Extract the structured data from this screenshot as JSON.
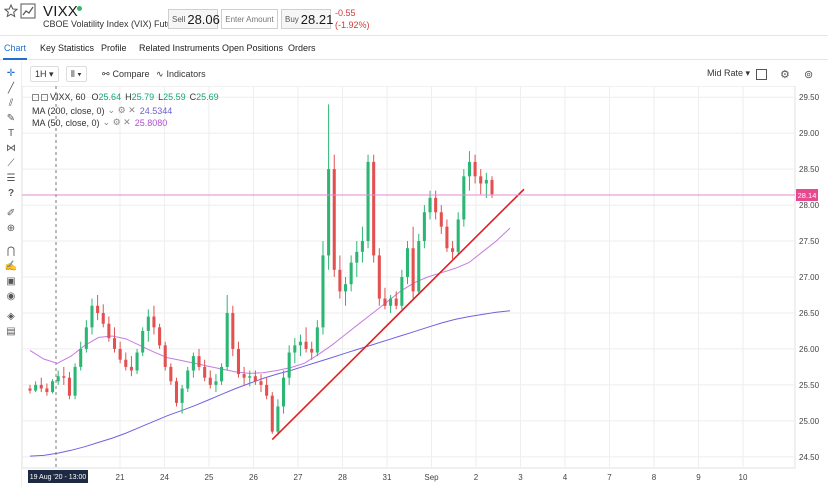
{
  "header": {
    "symbol": "VIXX",
    "instrument_name": "CBOE Volatility Index (VIX) Futures",
    "sell_label": "Sell",
    "sell_price": "28.06",
    "amount_placeholder": "Enter Amount",
    "buy_label": "Buy",
    "buy_price": "28.21",
    "change": "-0.55",
    "change_pct": "(-1.92%)",
    "colors": {
      "live": "#3cb371",
      "negative": "#d23a3a",
      "accent": "#1f6fd1"
    }
  },
  "tabs": [
    {
      "label": "Chart",
      "active": true
    },
    {
      "label": "Key Statistics"
    },
    {
      "label": "Profile"
    },
    {
      "label": "Related Instruments"
    },
    {
      "label": "Open Positions"
    },
    {
      "label": "Orders"
    }
  ],
  "chart_toolbar": {
    "interval": "1H",
    "compare_label": "Compare",
    "indicators_label": "Indicators",
    "price_mode": "Mid Rate"
  },
  "legend": {
    "title": "VIXX, 60",
    "o_label": "O",
    "o": "25.64",
    "h_label": "H",
    "h": "25.79",
    "l_label": "L",
    "l": "25.59",
    "c_label": "C",
    "c": "25.69",
    "ma200_label": "MA (200, close, 0)",
    "ma200_value": "24.5344",
    "ma50_label": "MA (50, close, 0)",
    "ma50_value": "25.8080"
  },
  "toolbar_icons": [
    "crosshair-icon",
    "line-icon",
    "multi-line-icon",
    "brush-icon",
    "text-icon",
    "pattern-icon",
    "measure-icon",
    "fib-icon",
    "help-icon",
    "pencil-icon",
    "zoom-icon",
    "magnet-icon",
    "lock-draw-icon",
    "lock-icon",
    "eye-icon",
    "layers-icon",
    "trash-icon"
  ],
  "chart_data": {
    "type": "candlestick",
    "y_ticks": [
      "29.50",
      "29.00",
      "28.50",
      "28.00",
      "27.50",
      "27.00",
      "26.50",
      "26.00",
      "25.50",
      "25.00",
      "24.50"
    ],
    "ylim": [
      24.4,
      29.6
    ],
    "x_ticks": [
      "21",
      "24",
      "25",
      "26",
      "27",
      "28",
      "31",
      "Sep",
      "2",
      "3",
      "4",
      "7",
      "8",
      "9",
      "10"
    ],
    "crosshair_x_label": "19 Aug '20 - 13:00",
    "current_price_label": "28.14",
    "current_price": 28.14,
    "colors": {
      "up": "#2bb673",
      "down": "#e25050",
      "ma50": "#c77be0",
      "ma200": "#6f62e0",
      "trendline": "#e02020",
      "price_line": "#e58ad6"
    },
    "trendline": {
      "from": [
        "Aug 26",
        24.74
      ],
      "to": [
        "Sep 2",
        28.22
      ]
    },
    "ma50": [
      25.98,
      25.86,
      25.8,
      25.9,
      26.05,
      26.16,
      26.18,
      26.14,
      26.05,
      25.96,
      25.88,
      25.84,
      25.8,
      25.76,
      25.72,
      25.68,
      25.66,
      25.67,
      25.7,
      25.74,
      25.8,
      25.92,
      26.05,
      26.2,
      26.35,
      26.5,
      26.65,
      26.8,
      26.92,
      27.0,
      27.06,
      27.12,
      27.2,
      27.35,
      27.5,
      27.68
    ],
    "ma200": [
      24.51,
      24.52,
      24.55,
      24.59,
      24.64,
      24.7,
      24.76,
      24.83,
      24.91,
      24.99,
      25.07,
      25.14,
      25.21,
      25.29,
      25.37,
      25.45,
      25.52,
      25.59,
      25.65,
      25.7,
      25.76,
      25.82,
      25.88,
      25.94,
      26.0,
      26.06,
      26.12,
      26.18,
      26.24,
      26.3,
      26.36,
      26.41,
      26.45,
      26.48,
      26.51,
      26.53
    ],
    "candles": [
      [
        25.45,
        25.5,
        25.38,
        25.42
      ],
      [
        25.42,
        25.55,
        25.4,
        25.5
      ],
      [
        25.5,
        25.6,
        25.4,
        25.45
      ],
      [
        25.45,
        25.52,
        25.35,
        25.4
      ],
      [
        25.4,
        25.58,
        25.38,
        25.55
      ],
      [
        25.55,
        25.7,
        25.5,
        25.62
      ],
      [
        25.62,
        25.75,
        25.5,
        25.6
      ],
      [
        25.6,
        25.68,
        25.3,
        25.35
      ],
      [
        25.35,
        25.8,
        25.3,
        25.75
      ],
      [
        25.75,
        26.1,
        25.7,
        26.0
      ],
      [
        26.0,
        26.4,
        25.95,
        26.3
      ],
      [
        26.3,
        26.7,
        26.2,
        26.6
      ],
      [
        26.6,
        26.75,
        26.4,
        26.5
      ],
      [
        26.5,
        26.62,
        26.3,
        26.35
      ],
      [
        26.35,
        26.45,
        26.1,
        26.15
      ],
      [
        26.15,
        26.3,
        25.95,
        26.0
      ],
      [
        26.0,
        26.1,
        25.8,
        25.85
      ],
      [
        25.85,
        25.95,
        25.7,
        25.75
      ],
      [
        25.75,
        25.9,
        25.62,
        25.7
      ],
      [
        25.7,
        26.0,
        25.65,
        25.95
      ],
      [
        25.95,
        26.3,
        25.9,
        26.25
      ],
      [
        26.25,
        26.55,
        26.1,
        26.45
      ],
      [
        26.45,
        26.6,
        26.2,
        26.3
      ],
      [
        26.3,
        26.35,
        26.0,
        26.05
      ],
      [
        26.05,
        26.1,
        25.7,
        25.75
      ],
      [
        25.75,
        25.8,
        25.5,
        25.55
      ],
      [
        25.55,
        25.6,
        25.2,
        25.25
      ],
      [
        25.25,
        25.5,
        25.1,
        25.45
      ],
      [
        25.45,
        25.75,
        25.4,
        25.7
      ],
      [
        25.7,
        25.95,
        25.6,
        25.9
      ],
      [
        25.9,
        26.0,
        25.7,
        25.75
      ],
      [
        25.75,
        25.85,
        25.55,
        25.6
      ],
      [
        25.6,
        25.7,
        25.45,
        25.5
      ],
      [
        25.5,
        25.65,
        25.4,
        25.55
      ],
      [
        25.55,
        25.8,
        25.5,
        25.75
      ],
      [
        25.75,
        26.75,
        25.7,
        26.5
      ],
      [
        26.5,
        26.6,
        25.9,
        26.0
      ],
      [
        26.0,
        26.1,
        25.6,
        25.65
      ],
      [
        25.65,
        25.75,
        25.5,
        25.6
      ],
      [
        25.6,
        25.7,
        25.48,
        25.62
      ],
      [
        25.62,
        25.7,
        25.5,
        25.55
      ],
      [
        25.55,
        25.65,
        25.4,
        25.5
      ],
      [
        25.5,
        25.6,
        25.3,
        25.35
      ],
      [
        25.35,
        25.4,
        24.82,
        24.85
      ],
      [
        24.85,
        25.3,
        24.8,
        25.2
      ],
      [
        25.2,
        25.7,
        25.1,
        25.6
      ],
      [
        25.6,
        26.05,
        25.5,
        25.95
      ],
      [
        25.95,
        26.15,
        25.8,
        26.05
      ],
      [
        26.05,
        26.2,
        25.9,
        26.1
      ],
      [
        26.1,
        26.3,
        25.95,
        26.0
      ],
      [
        26.0,
        26.1,
        25.85,
        25.95
      ],
      [
        25.95,
        26.4,
        25.9,
        26.3
      ],
      [
        26.3,
        27.5,
        26.2,
        27.3
      ],
      [
        27.3,
        29.4,
        27.1,
        28.5
      ],
      [
        28.5,
        28.7,
        27.0,
        27.1
      ],
      [
        27.1,
        27.3,
        26.7,
        26.8
      ],
      [
        26.8,
        27.0,
        26.6,
        26.9
      ],
      [
        26.9,
        27.3,
        26.8,
        27.2
      ],
      [
        27.2,
        27.5,
        27.0,
        27.35
      ],
      [
        27.35,
        27.7,
        27.2,
        27.5
      ],
      [
        27.5,
        28.7,
        27.4,
        28.6
      ],
      [
        28.6,
        28.7,
        27.2,
        27.3
      ],
      [
        27.3,
        27.4,
        26.6,
        26.7
      ],
      [
        26.7,
        26.85,
        26.55,
        26.6
      ],
      [
        26.6,
        26.75,
        26.5,
        26.7
      ],
      [
        26.7,
        26.8,
        26.55,
        26.6
      ],
      [
        26.6,
        27.1,
        26.55,
        27.0
      ],
      [
        27.0,
        27.5,
        26.9,
        27.4
      ],
      [
        27.4,
        27.7,
        26.7,
        26.8
      ],
      [
        26.8,
        27.6,
        26.75,
        27.5
      ],
      [
        27.5,
        28.0,
        27.4,
        27.9
      ],
      [
        27.9,
        28.2,
        27.8,
        28.1
      ],
      [
        28.1,
        28.2,
        27.8,
        27.9
      ],
      [
        27.9,
        28.0,
        27.6,
        27.7
      ],
      [
        27.7,
        27.8,
        27.35,
        27.4
      ],
      [
        27.4,
        27.5,
        27.25,
        27.35
      ],
      [
        27.35,
        27.9,
        27.3,
        27.8
      ],
      [
        27.8,
        28.5,
        27.7,
        28.4
      ],
      [
        28.4,
        28.75,
        28.2,
        28.6
      ],
      [
        28.6,
        28.7,
        28.3,
        28.4
      ],
      [
        28.4,
        28.5,
        28.15,
        28.3
      ],
      [
        28.3,
        28.45,
        28.1,
        28.35
      ],
      [
        28.35,
        28.4,
        28.1,
        28.15
      ]
    ]
  }
}
